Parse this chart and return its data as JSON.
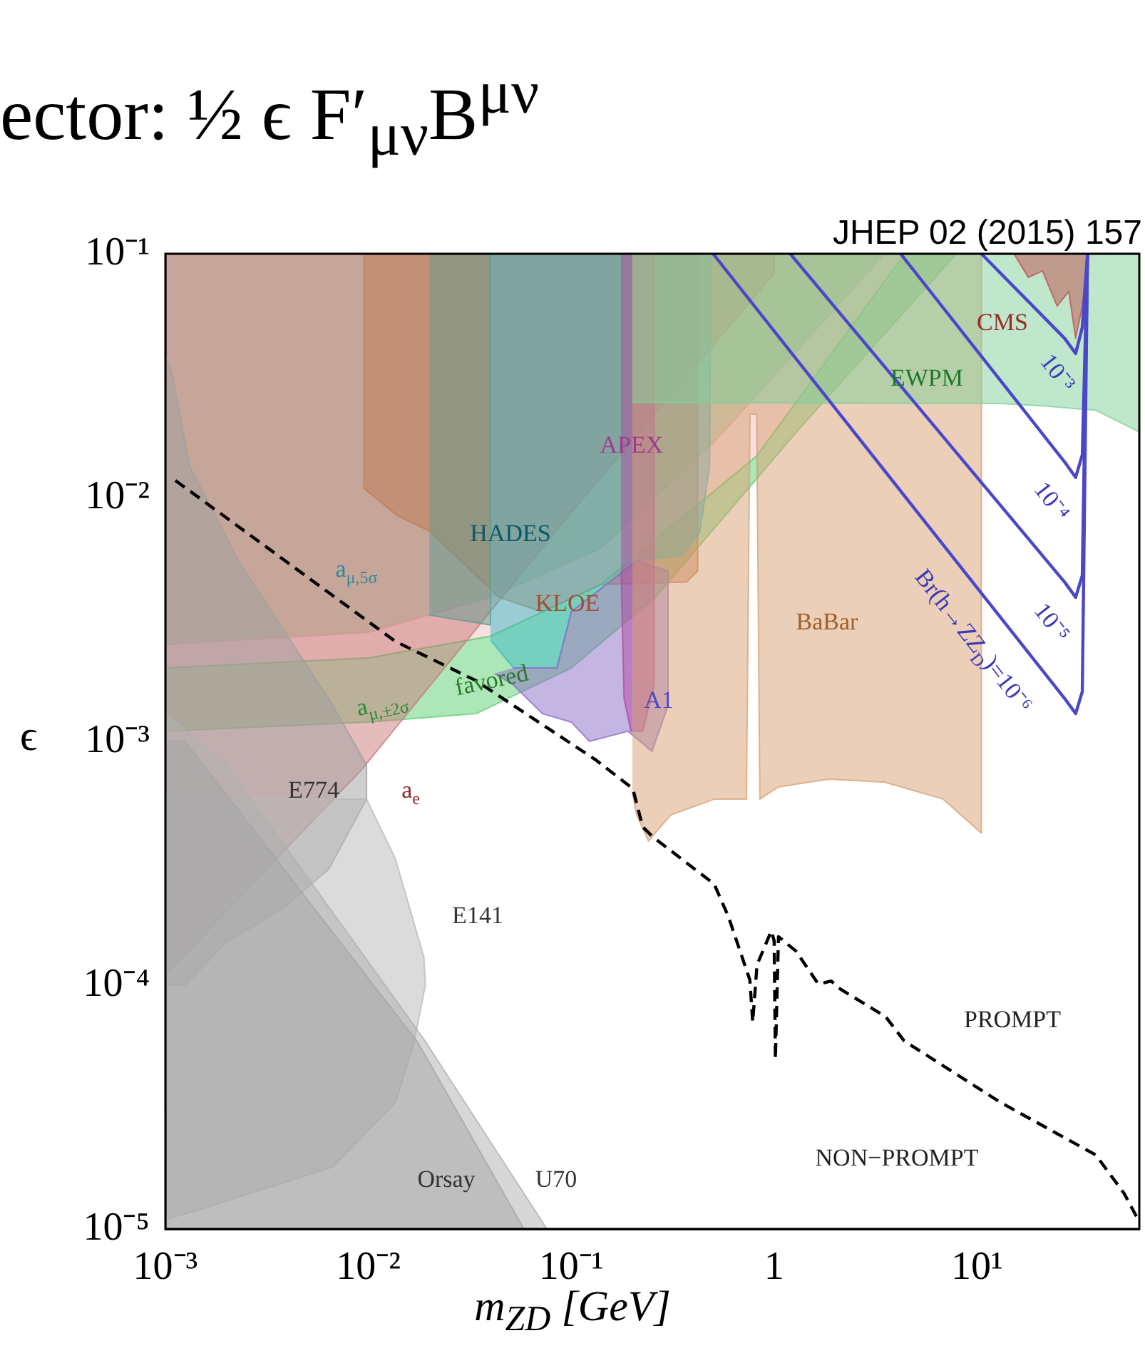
{
  "chart_data": {
    "type": "area",
    "title": "ector: ½ ϵ F′$_{μν}$B$^{μν}$",
    "xlabel": "m$_{ZD}$ [GeV]",
    "ylabel": "ϵ",
    "log": "xy",
    "grid": false,
    "legend": false,
    "marker": "none",
    "xlim": [
      0.001,
      63
    ],
    "ylim": [
      1e-05,
      0.1
    ],
    "xticks": [
      {
        "value": 0.001,
        "label": "10⁻³"
      },
      {
        "value": 0.01,
        "label": "10⁻²"
      },
      {
        "value": 0.1,
        "label": "10⁻¹"
      },
      1,
      {
        "value": 10,
        "label": "10¹"
      }
    ],
    "yticks": [
      {
        "value": 1e-05,
        "label": "10⁻⁵"
      },
      {
        "value": 0.0001,
        "label": "10⁻⁴"
      },
      {
        "value": 0.001,
        "label": "10⁻³"
      },
      {
        "value": 0.01,
        "label": "10⁻²"
      },
      {
        "value": 0.1,
        "label": "10⁻¹"
      }
    ],
    "series": [
      {
        "type": "area",
        "color": "#8aa878",
        "x": [
          0.001,
          3.5,
          0.51,
          0.14,
          0.04,
          0.01,
          0.001
        ],
        "values": [
          0.1,
          0.1,
          0.017,
          0.0062,
          0.0039,
          0.0028,
          0.0025
        ]
      },
      {
        "type": "area",
        "color": "#f0c0c0",
        "x": [
          0.001,
          0.01,
          0.04,
          0.14,
          0.51,
          3.5,
          4.4,
          0.82,
          0.14,
          0.04,
          0.01,
          0.001
        ],
        "values": [
          0.0025,
          0.0028,
          0.0039,
          0.0062,
          0.017,
          0.1,
          0.1,
          0.0148,
          0.0044,
          0.0027,
          0.0022,
          0.002
        ]
      },
      {
        "type": "area",
        "color": "#5ccf70",
        "x": [
          0.001,
          0.01,
          0.04,
          0.14,
          0.82,
          4.4,
          7.9,
          1.34,
          0.26,
          0.1,
          0.034,
          0.01,
          0.001
        ],
        "values": [
          0.002,
          0.0022,
          0.0027,
          0.0044,
          0.0148,
          0.1,
          0.1,
          0.0193,
          0.0039,
          0.002,
          0.0013,
          0.0012,
          0.0011
        ]
      },
      {
        "type": "area",
        "color": "#c97a7a",
        "x": [
          0.001,
          0.001,
          0.0092,
          0.1,
          1.0,
          1.0
        ],
        "values": [
          0.1,
          0.00011,
          0.00076,
          0.0087,
          0.083,
          0.1
        ]
      },
      {
        "type": "area",
        "color": "#a0a0a0",
        "x": [
          0.001,
          0.00107,
          0.00132,
          0.00229,
          0.0067,
          0.0098,
          0.0098,
          0.0064,
          0.0039,
          0.002,
          0.00125,
          0.001
        ],
        "values": [
          0.038,
          0.033,
          0.0134,
          0.0055,
          0.0014,
          0.0008,
          0.00058,
          0.0003,
          0.00021,
          0.00015,
          0.0001,
          0.0001
        ]
      },
      {
        "type": "area",
        "color": "#b8b8b8",
        "x": [
          0.001,
          0.0039,
          0.0098,
          0.0136,
          0.0188,
          0.0191,
          0.0168,
          0.0136,
          0.0067,
          0.00148,
          0.00102
        ],
        "values": [
          0.00058,
          0.00058,
          0.00058,
          0.00033,
          0.00013,
          0.0001,
          5.8e-05,
          3.3e-05,
          1.8e-05,
          1.2e-05,
          1.1e-05
        ]
      },
      {
        "type": "area",
        "color": "#9a9a9a",
        "x": [
          0.001,
          0.00125,
          0.0176,
          0.0585,
          0.001
        ],
        "values": [
          0.001,
          0.001,
          5.8e-05,
          1e-05,
          1e-05
        ]
      },
      {
        "type": "area",
        "color": "#b0b0b0",
        "x": [
          0.001,
          0.002,
          0.0188,
          0.0759,
          0.001
        ],
        "values": [
          0.0013,
          0.0008,
          6e-05,
          1e-05,
          1e-05
        ]
      },
      {
        "type": "area",
        "color": "#c07a50",
        "x": [
          0.0094,
          0.42,
          0.42,
          0.37,
          0.14,
          0.072,
          0.044,
          0.02,
          0.014,
          0.0094
        ],
        "values": [
          0.1,
          0.1,
          0.005,
          0.0045,
          0.0044,
          0.0034,
          0.0039,
          0.0073,
          0.0084,
          0.011
        ]
      },
      {
        "type": "area",
        "color": "#5f9a90",
        "x": [
          0.02,
          0.04,
          0.04,
          0.02
        ],
        "values": [
          0.1,
          0.1,
          0.003,
          0.0033
        ]
      },
      {
        "type": "area",
        "color": "#40b8c8",
        "x": [
          0.04,
          0.49,
          0.48,
          0.43,
          0.35,
          0.21,
          0.1,
          0.085,
          0.052,
          0.04
        ],
        "values": [
          0.1,
          0.1,
          0.0134,
          0.0072,
          0.0058,
          0.0055,
          0.0034,
          0.002,
          0.002,
          0.0026
        ]
      },
      {
        "type": "area",
        "color": "#8a6cc8",
        "x": [
          0.042,
          0.052,
          0.072,
          0.1,
          0.123,
          0.19,
          0.25,
          0.3,
          0.3,
          0.21,
          0.1,
          0.085,
          0.052
        ],
        "values": [
          0.0019,
          0.0017,
          0.0013,
          0.0012,
          0.001,
          0.0011,
          0.00091,
          0.0014,
          0.005,
          0.0055,
          0.0034,
          0.002,
          0.002
        ]
      },
      {
        "type": "area",
        "color": "#b04aa0",
        "x": [
          0.176,
          0.256,
          0.256,
          0.225,
          0.197,
          0.182,
          0.176
        ],
        "values": [
          0.1,
          0.1,
          0.0017,
          0.0011,
          0.0011,
          0.0015,
          0.005
        ]
      },
      {
        "type": "area",
        "color": "#d9a072",
        "x": [
          0.2,
          10.5,
          10.5,
          6.8,
          3.5,
          1.85,
          1.05,
          0.85,
          0.82,
          0.76,
          0.73,
          0.51,
          0.31,
          0.24,
          0.21,
          0.2
        ],
        "values": [
          0.1,
          0.1,
          0.00042,
          0.00058,
          0.00068,
          0.0007,
          0.00065,
          0.00058,
          0.022,
          0.022,
          0.00058,
          0.00058,
          0.0005,
          0.00039,
          0.0005,
          0.00062
        ]
      },
      {
        "type": "area",
        "color": "#80d09a",
        "x": [
          0.2,
          63,
          63,
          38.5,
          22,
          13,
          0.2
        ],
        "values": [
          0.1,
          0.1,
          0.0186,
          0.0228,
          0.0237,
          0.0243,
          0.0246
        ]
      },
      {
        "type": "area",
        "color": "#c05050",
        "x": [
          15.2,
          17.9,
          21,
          24.8,
          28.3,
          30.6,
          33,
          35.4
        ],
        "values": [
          0.1,
          0.08,
          0.085,
          0.061,
          0.07,
          0.045,
          0.061,
          0.1
        ]
      },
      {
        "type": "line",
        "color": "#4a48c8",
        "x": [
          10.5,
          27,
          30.6,
          33,
          35
        ],
        "values": [
          0.1,
          0.045,
          0.039,
          0.05,
          0.1
        ]
      },
      {
        "type": "line",
        "color": "#4a48c8",
        "x": [
          4.2,
          27,
          30.6,
          33,
          35
        ],
        "values": [
          0.1,
          0.014,
          0.0121,
          0.015,
          0.1
        ]
      },
      {
        "type": "line",
        "color": "#4a48c8",
        "x": [
          1.2,
          27,
          30.6,
          33,
          35
        ],
        "values": [
          0.1,
          0.0045,
          0.0039,
          0.0048,
          0.1
        ]
      },
      {
        "type": "line",
        "color": "#4a48c8",
        "x": [
          0.5,
          27,
          30.6,
          33,
          35
        ],
        "values": [
          0.1,
          0.0015,
          0.0013,
          0.0016,
          0.1
        ]
      },
      {
        "type": "line",
        "color": "#000000",
        "line_style": "dashed",
        "x": [
          0.00112,
          0.0136,
          0.0337,
          0.132,
          0.201,
          0.225,
          0.252,
          0.506,
          0.595,
          0.759,
          0.784,
          0.823,
          0.968,
          1.0,
          1.014,
          1.05,
          1.28,
          1.65,
          1.91,
          2.08,
          3.54,
          4.37,
          13,
          38.5,
          53,
          63
        ],
        "values": [
          0.01175,
          0.00257,
          0.00178,
          0.00084,
          0.00064,
          0.000446,
          0.000406,
          0.00026,
          0.000191,
          0.000105,
          7.05e-05,
          0.000121,
          0.000167,
          0.000152,
          4.97e-05,
          0.000158,
          0.000138,
          0.000101,
          0.000104,
          9.73e-05,
          7.43e-05,
          5.91e-05,
          3.31e-05,
          2.01e-05,
          1.4e-05,
          1.07e-05
        ]
      }
    ],
    "annotations": [
      "JHEP 02 (2015) 157",
      "a$_{μ,5σ}$",
      "HADES",
      "APEX",
      "KLOE",
      "BaBar",
      "A1",
      "a$_{μ,±2σ}$",
      "favored",
      "E774",
      "a$_{e}$",
      "E141",
      "Orsay",
      "U70",
      "CMS",
      "EWPM",
      "10⁻³",
      "10⁻⁴",
      "10⁻⁵",
      "Br(h→ZZ$_{D}$)=10⁻⁶",
      "PROMPT",
      "NON−PROMPT"
    ]
  }
}
